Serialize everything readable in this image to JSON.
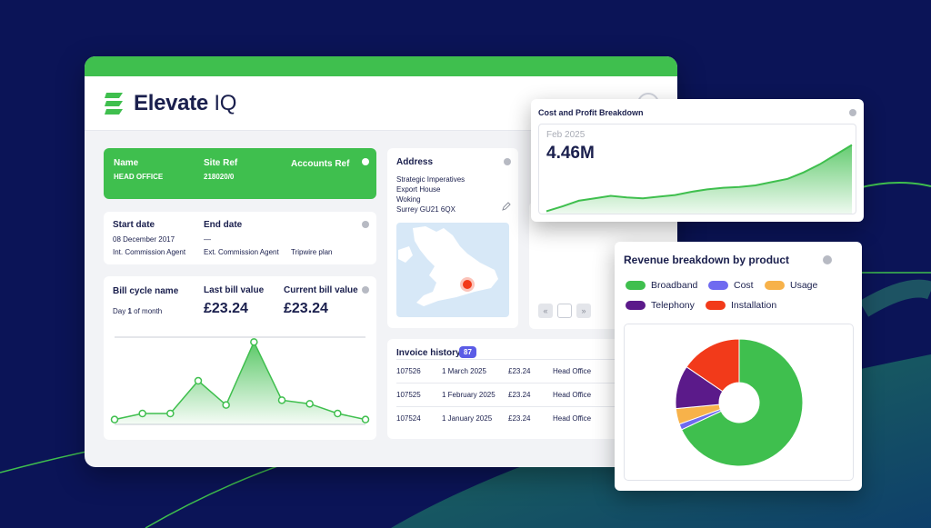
{
  "brand": {
    "name": "Elevate",
    "suffix": "IQ"
  },
  "account": {
    "name_label": "Name",
    "name_value": "HEAD OFFICE",
    "site_ref_label": "Site Ref",
    "site_ref_value": "218020/0",
    "accounts_ref_label": "Accounts Ref"
  },
  "dates": {
    "start_label": "Start date",
    "start_value": "08 December 2017",
    "end_label": "End date",
    "end_value": "—",
    "roles": [
      "Int. Commission Agent",
      "Ext. Commission Agent",
      "Tripwire plan"
    ]
  },
  "bill": {
    "cycle_label": "Bill cycle name",
    "cycle_value_prefix": "Day ",
    "cycle_value_day": "1",
    "cycle_value_suffix": " of month",
    "last_label": "Last bill value",
    "last_value": "£23.24",
    "current_label": "Current bill value",
    "current_value": "£23.24"
  },
  "address": {
    "label": "Address",
    "lines": [
      "Strategic Imperatives",
      "Export House",
      "Woking",
      "Surrey GU21 6QX"
    ]
  },
  "invoices": {
    "label": "Invoice history",
    "count": "87",
    "rows": [
      {
        "id": "107526",
        "date": "1 March 2025",
        "amount": "£23.24",
        "site": "Head Office"
      },
      {
        "id": "107525",
        "date": "1 February 2025",
        "amount": "£23.24",
        "site": "Head Office"
      },
      {
        "id": "107524",
        "date": "1 January 2025",
        "amount": "£23.24",
        "site": "Head Office"
      }
    ]
  },
  "pager": {
    "prev": "«",
    "next": "»"
  },
  "cost_panel": {
    "title": "Cost and Profit Breakdown",
    "month": "Feb 2025",
    "kpi": "4.46M"
  },
  "revenue_panel": {
    "title": "Revenue breakdown by product",
    "legend": [
      "Broadband",
      "Cost",
      "Usage",
      "Telephony",
      "Installation"
    ]
  },
  "colors": {
    "green": "#3fbf4e",
    "navy": "#0b1457",
    "blue": "#6f6af0",
    "orange": "#f7b24a",
    "purple": "#5b1a8a",
    "red": "#f23a1a"
  },
  "chart_data": [
    {
      "type": "line",
      "title": "",
      "x": [
        1,
        2,
        3,
        4,
        5,
        6,
        7,
        8,
        9,
        10
      ],
      "values": [
        0.4,
        0.9,
        0.9,
        3.6,
        1.6,
        6.8,
        2.0,
        1.7,
        0.9,
        0.4
      ],
      "ylim": [
        0,
        7.5
      ],
      "grid": false
    },
    {
      "type": "area",
      "title": "Cost and Profit Breakdown",
      "x": [
        1,
        2,
        3,
        4,
        5,
        6,
        7,
        8,
        9,
        10,
        11,
        12,
        13,
        14,
        15,
        16,
        17,
        18,
        19,
        20
      ],
      "values": [
        0.4,
        1.0,
        1.7,
        2.0,
        2.3,
        2.1,
        2.0,
        2.2,
        2.4,
        2.8,
        3.1,
        3.3,
        3.4,
        3.6,
        4.0,
        4.4,
        5.2,
        6.2,
        7.4,
        8.6
      ],
      "ylim": [
        0,
        10
      ]
    },
    {
      "type": "pie",
      "title": "Revenue breakdown by product",
      "donut": true,
      "labels": [
        "Broadband",
        "Cost",
        "Usage",
        "Telephony",
        "Installation"
      ],
      "values": [
        68,
        1.5,
        4,
        11,
        15.5
      ],
      "colors": [
        "#3fbf4e",
        "#6f6af0",
        "#f7b24a",
        "#5b1a8a",
        "#f23a1a"
      ]
    }
  ]
}
